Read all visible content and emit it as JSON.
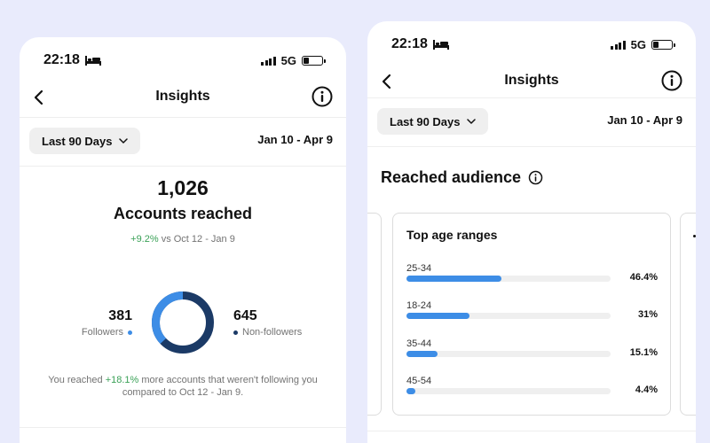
{
  "left_screen": {
    "status": {
      "time": "22:18",
      "network": "5G"
    },
    "nav": {
      "title": "Insights"
    },
    "range": {
      "label": "Last 90 Days",
      "dates": "Jan 10 - Apr 9"
    },
    "reach": {
      "count": "1,026",
      "label": "Accounts reached",
      "change": "+9.2%",
      "change_suffix": " vs Oct 12 - Jan 9"
    },
    "breakdown": {
      "followers_count": "381",
      "followers_label": "Followers",
      "nonfollowers_count": "645",
      "nonfollowers_label": "Non-followers",
      "followers_value": 381,
      "nonfollowers_value": 645,
      "followers_color": "#3d8de6",
      "nonfollowers_color": "#1b3a66"
    },
    "footnote": {
      "prefix": "You reached ",
      "highlight": "+18.1%",
      "suffix": " more accounts that weren't following you compared to Oct 12 - Jan 9."
    }
  },
  "right_screen": {
    "status": {
      "time": "22:18",
      "network": "5G"
    },
    "nav": {
      "title": "Insights"
    },
    "range": {
      "label": "Last 90 Days",
      "dates": "Jan 10 - Apr 9"
    },
    "section_title": "Reached audience",
    "age_card": {
      "title": "Top age ranges",
      "rows": [
        {
          "label": "25-34",
          "percent": "46.4%",
          "value": 46.4
        },
        {
          "label": "18-24",
          "percent": "31%",
          "value": 31
        },
        {
          "label": "35-44",
          "percent": "15.1%",
          "value": 15.1
        },
        {
          "label": "45-54",
          "percent": "4.4%",
          "value": 4.4
        }
      ]
    }
  },
  "icons": {
    "status_left": "bed-icon",
    "back": "chevron-left-icon",
    "info": "info-circle-icon",
    "dropdown": "chevron-down-icon"
  },
  "colors": {
    "accent": "#3d8de6",
    "positive": "#3aa157",
    "background": "#e9ebfc"
  }
}
